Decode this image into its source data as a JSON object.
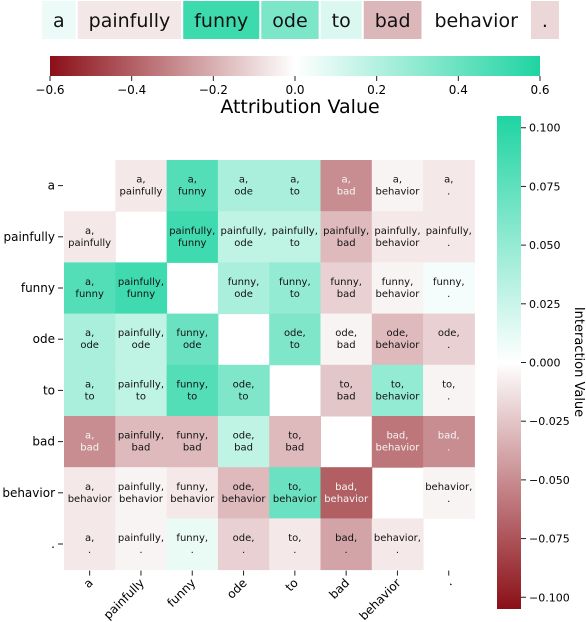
{
  "chart_data": [
    {
      "type": "bar",
      "subtype": "token-attribution-strip",
      "tokens": [
        "a",
        "painfully",
        "funny",
        "ode",
        "to",
        "bad",
        "behavior",
        "."
      ],
      "values": [
        0.05,
        -0.06,
        0.52,
        0.35,
        0.1,
        -0.18,
        0.0,
        -0.1
      ],
      "colorbar": {
        "label": "Attribution Value",
        "range": [
          -0.6,
          0.6
        ],
        "ticks": [
          "−0.6",
          "−0.4",
          "−0.2",
          "0.0",
          "0.2",
          "0.4",
          "0.6"
        ],
        "tick_values": [
          -0.6,
          -0.4,
          -0.2,
          0.0,
          0.2,
          0.4,
          0.6
        ],
        "colors": [
          "#8b0f17",
          "#ffffff",
          "#1fd4a2"
        ]
      }
    },
    {
      "type": "heatmap",
      "row_labels": [
        "a",
        "painfully",
        "funny",
        "ode",
        "to",
        "bad",
        "behavior",
        "."
      ],
      "col_labels": [
        "a",
        "painfully",
        "funny",
        "ode",
        "to",
        "bad",
        "behavior",
        "."
      ],
      "values": [
        [
          null,
          -0.01,
          0.08,
          0.04,
          0.04,
          -0.05,
          -0.005,
          -0.01
        ],
        [
          -0.01,
          null,
          0.09,
          0.03,
          0.03,
          -0.03,
          -0.01,
          -0.01
        ],
        [
          0.08,
          0.09,
          null,
          0.04,
          0.05,
          -0.02,
          -0.005,
          0.005
        ],
        [
          0.04,
          0.03,
          0.07,
          null,
          0.06,
          -0.005,
          -0.03,
          -0.02
        ],
        [
          0.04,
          0.03,
          0.08,
          0.06,
          null,
          -0.025,
          0.05,
          -0.005
        ],
        [
          -0.05,
          -0.03,
          -0.03,
          0.03,
          -0.03,
          null,
          -0.06,
          -0.05
        ],
        [
          -0.01,
          -0.005,
          -0.01,
          -0.03,
          0.07,
          -0.07,
          null,
          -0.005
        ],
        [
          -0.01,
          -0.005,
          0.01,
          -0.02,
          -0.01,
          -0.04,
          -0.01,
          null
        ]
      ],
      "cell_labels": [
        [
          "",
          "a,\npainfully",
          "a,\nfunny",
          "a,\node",
          "a,\nto",
          "a,\nbad",
          "a,\nbehavior",
          "a,\n."
        ],
        [
          "a,\npainfully",
          "",
          "painfully,\nfunny",
          "painfully,\node",
          "painfully,\nto",
          "painfully,\nbad",
          "painfully,\nbehavior",
          "painfully,\n."
        ],
        [
          "a,\nfunny",
          "painfully,\nfunny",
          "",
          "funny,\node",
          "funny,\nto",
          "funny,\nbad",
          "funny,\nbehavior",
          "funny,\n."
        ],
        [
          "a,\node",
          "painfully,\node",
          "funny,\node",
          "",
          "ode,\nto",
          "ode,\nbad",
          "ode,\nbehavior",
          "ode,\n."
        ],
        [
          "a,\nto",
          "painfully,\nto",
          "funny,\nto",
          "ode,\nto",
          "",
          "to,\nbad",
          "to,\nbehavior",
          "to,\n."
        ],
        [
          "a,\nbad",
          "painfully,\nbad",
          "funny,\nbad",
          "ode,\nbad",
          "to,\nbad",
          "",
          "bad,\nbehavior",
          "bad,\n."
        ],
        [
          "a,\nbehavior",
          "painfully,\nbehavior",
          "funny,\nbehavior",
          "ode,\nbehavior",
          "to,\nbehavior",
          "bad,\nbehavior",
          "",
          "behavior,\n."
        ],
        [
          "a,\n.",
          "painfully,\n.",
          "funny,\n.",
          "ode,\n.",
          "to,\n.",
          "bad,\n.",
          "behavior,\n.",
          ""
        ]
      ],
      "colorbar": {
        "label": "Interaction Value",
        "range": [
          -0.105,
          0.105
        ],
        "ticks": [
          "0.100",
          "0.075",
          "0.050",
          "0.025",
          "0.000",
          "−0.025",
          "−0.050",
          "−0.075",
          "−0.100"
        ],
        "tick_values": [
          0.1,
          0.075,
          0.05,
          0.025,
          0.0,
          -0.025,
          -0.05,
          -0.075,
          -0.1
        ],
        "colors": [
          "#8b0f17",
          "#ffffff",
          "#1fd4a2"
        ]
      }
    }
  ]
}
